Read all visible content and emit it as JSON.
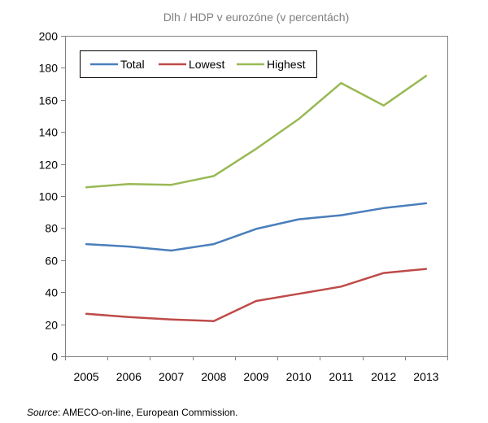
{
  "chart_data": {
    "type": "line",
    "title": "Dlh / HDP v eurozóne (v percentách)",
    "xlabel": "",
    "ylabel": "",
    "categories": [
      "2005",
      "2006",
      "2007",
      "2008",
      "2009",
      "2010",
      "2011",
      "2012",
      "2013"
    ],
    "ylim": [
      0,
      200
    ],
    "yticks": [
      "0",
      "20",
      "40",
      "60",
      "80",
      "100",
      "120",
      "140",
      "160",
      "180",
      "200"
    ],
    "grid": false,
    "legend_position": "top-left",
    "series": [
      {
        "name": "Total",
        "color": "#4a7ebb",
        "values": [
          70,
          68.5,
          66,
          70,
          79.5,
          85.5,
          88,
          92.5,
          95.5
        ]
      },
      {
        "name": "Lowest",
        "color": "#be4b48",
        "values": [
          26.5,
          24.5,
          23,
          22,
          34.5,
          39,
          43.5,
          52,
          54.5
        ]
      },
      {
        "name": "Highest",
        "color": "#98b954",
        "values": [
          105.5,
          107.5,
          107,
          112.5,
          129.5,
          148,
          170.5,
          156.5,
          175
        ]
      }
    ]
  },
  "source": {
    "label": "Source",
    "text": ": AMECO-on-line, European Commission."
  }
}
